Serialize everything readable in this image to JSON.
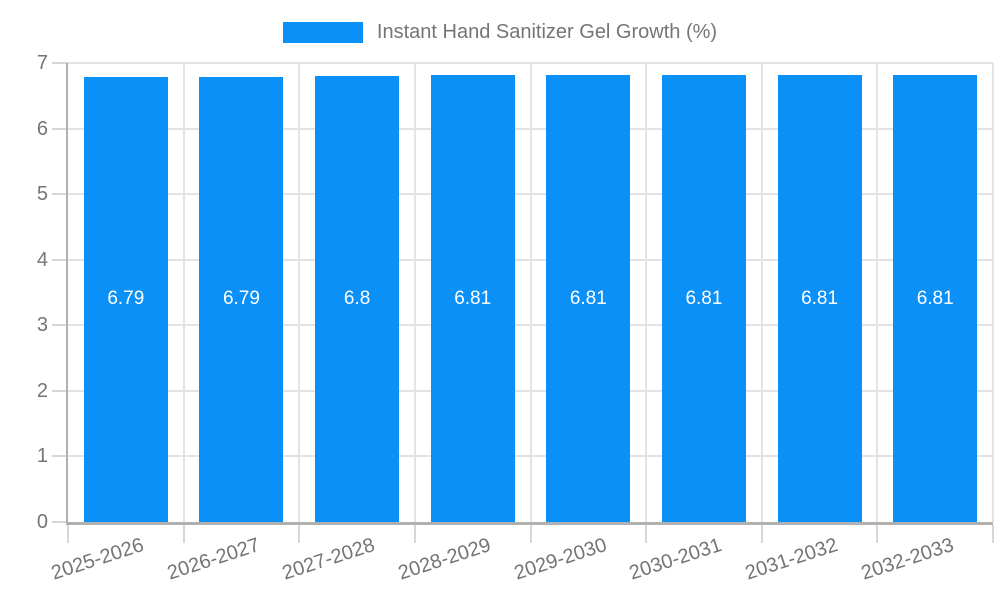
{
  "chart_data": {
    "type": "bar",
    "title": "Instant Hand Sanitizer Gel Growth (%)",
    "legend": {
      "label": "Instant Hand Sanitizer Gel Growth (%)",
      "position": "top"
    },
    "categories": [
      "2025-2026",
      "2026-2027",
      "2027-2028",
      "2028-2029",
      "2029-2030",
      "2030-2031",
      "2031-2032",
      "2032-2033"
    ],
    "series": [
      {
        "name": "Instant Hand Sanitizer Gel Growth (%)",
        "values": [
          6.79,
          6.79,
          6.8,
          6.81,
          6.81,
          6.81,
          6.81,
          6.81
        ]
      }
    ],
    "value_labels_shown": true,
    "xlabel": "",
    "ylabel": "",
    "ylim": [
      0,
      7
    ],
    "yticks": [
      "0",
      "1",
      "2",
      "3",
      "4",
      "5",
      "6",
      "7"
    ],
    "grid": true,
    "colors": {
      "bar": "#0b90f8",
      "bar_value_text": "#ffffff",
      "axis_text": "#757575",
      "gridline": "#e3e3e3",
      "tick": "#d6d6d6",
      "axis_line": "#b0b0b0",
      "background": "#ffffff"
    }
  }
}
